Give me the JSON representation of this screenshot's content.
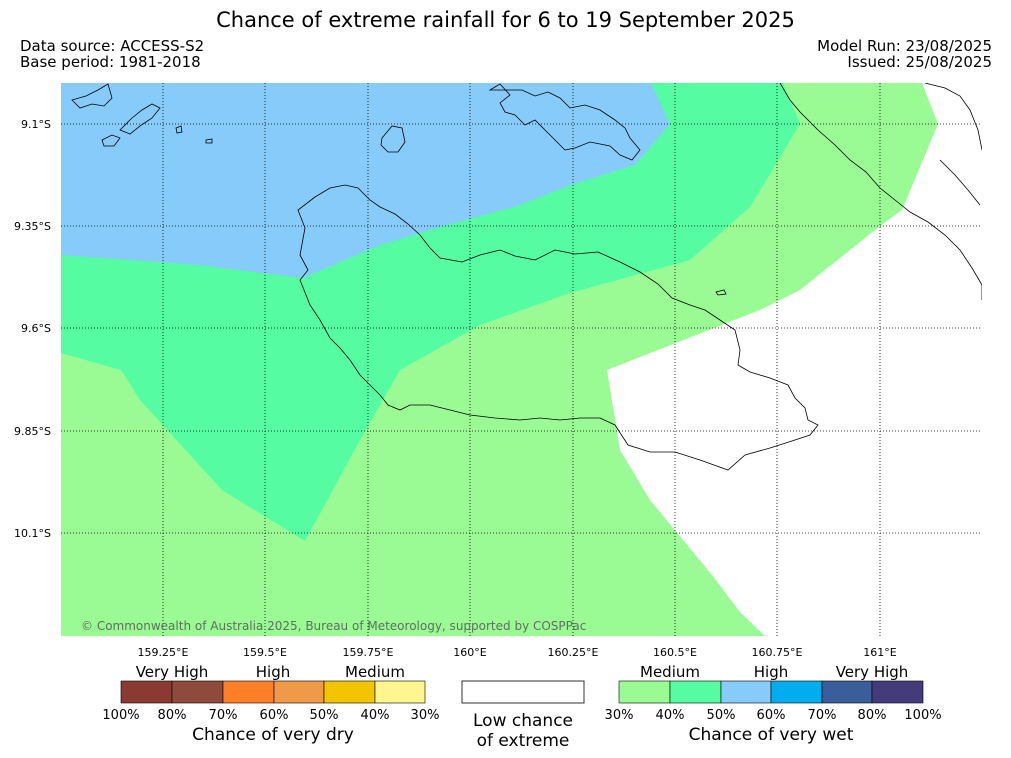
{
  "title": "Chance of extreme rainfall for 6 to 19 September 2025",
  "source": {
    "data_source": "Data source: ACCESS-S2",
    "base_period": "Base period: 1981-2018",
    "model_run": "Model Run: 23/08/2025",
    "issued": "Issued: 25/08/2025"
  },
  "map": {
    "lat_labels": [
      "9.1°S",
      "9.35°S",
      "9.6°S",
      "9.85°S",
      "10.1°S"
    ],
    "lon_labels": [
      "159.25°E",
      "159.5°E",
      "159.75°E",
      "160°E",
      "160.25°E",
      "160.5°E",
      "160.75°E",
      "161°E"
    ],
    "copyright": "© Commonwealth of Australia 2025, Bureau of Meteorology, supported by COSPPac"
  },
  "legend": {
    "dry": {
      "categories": [
        "Very High",
        "High",
        "Medium"
      ],
      "colors": [
        "#8b3a32",
        "#8e4b3b",
        "#ff7f27",
        "#ef9a48",
        "#f2c500",
        "#fff68f"
      ],
      "ticks": [
        "100%",
        "80%",
        "70%",
        "60%",
        "50%",
        "40%",
        "30%"
      ],
      "caption": "Chance of very dry"
    },
    "low": {
      "caption_line1": "Low chance",
      "caption_line2": "of extreme"
    },
    "wet": {
      "categories": [
        "Medium",
        "High",
        "Very High"
      ],
      "colors": [
        "#9afb95",
        "#55fca2",
        "#87cbfb",
        "#00aeef",
        "#3a5e99",
        "#433b7a"
      ],
      "ticks": [
        "30%",
        "40%",
        "50%",
        "60%",
        "70%",
        "80%",
        "100%"
      ],
      "caption": "Chance of very wet"
    }
  },
  "zone_colors": {
    "high_wet": "#87cbfb",
    "medium_wet_50": "#55fca2",
    "medium_wet_30": "#9afb95",
    "low": "#ffffff"
  }
}
